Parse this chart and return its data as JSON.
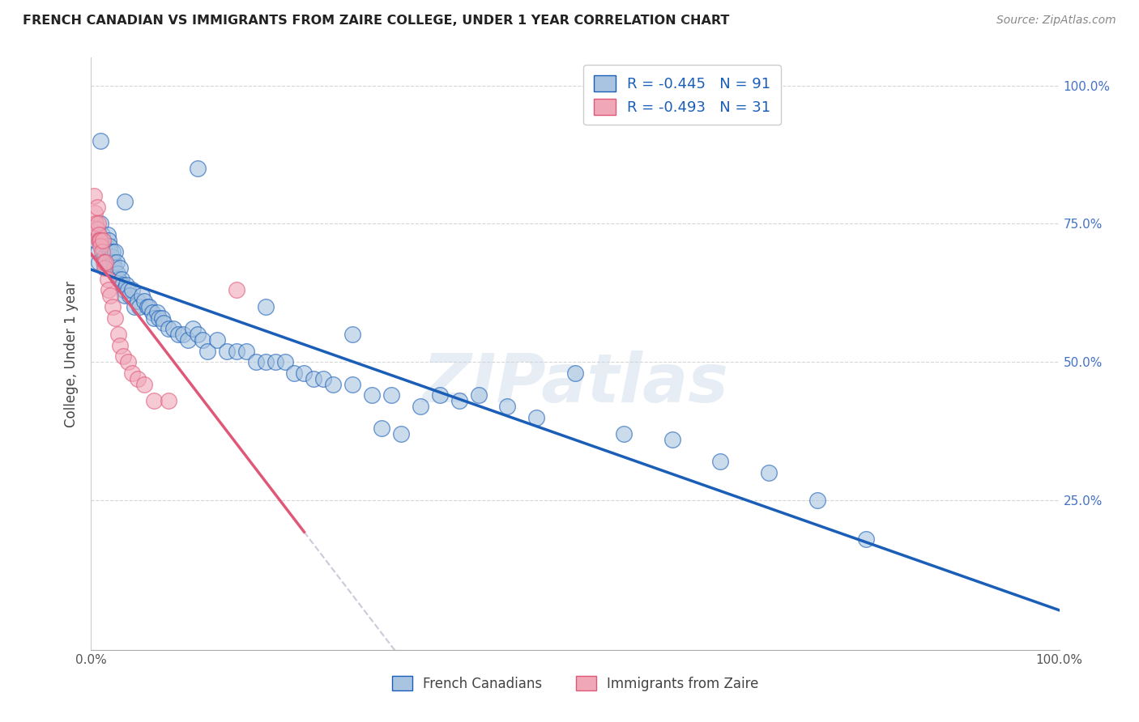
{
  "title": "FRENCH CANADIAN VS IMMIGRANTS FROM ZAIRE COLLEGE, UNDER 1 YEAR CORRELATION CHART",
  "source": "Source: ZipAtlas.com",
  "ylabel": "College, Under 1 year",
  "legend_blue": "R = -0.445   N = 91",
  "legend_pink": "R = -0.493   N = 31",
  "legend_label_blue": "French Canadians",
  "legend_label_pink": "Immigrants from Zaire",
  "watermark": "ZIPatlas",
  "blue_color": "#a8c4e0",
  "pink_color": "#f0a8b8",
  "blue_line_color": "#1a5eb8",
  "pink_line_color": "#e05878",
  "dash_color": "#d0c8d8",
  "blue_points_x": [
    0.005,
    0.007,
    0.008,
    0.01,
    0.01,
    0.011,
    0.012,
    0.013,
    0.014,
    0.015,
    0.015,
    0.016,
    0.017,
    0.018,
    0.019,
    0.02,
    0.02,
    0.021,
    0.022,
    0.023,
    0.024,
    0.025,
    0.026,
    0.027,
    0.028,
    0.03,
    0.031,
    0.032,
    0.034,
    0.035,
    0.036,
    0.038,
    0.04,
    0.042,
    0.045,
    0.048,
    0.05,
    0.052,
    0.055,
    0.058,
    0.06,
    0.063,
    0.065,
    0.068,
    0.07,
    0.073,
    0.075,
    0.08,
    0.085,
    0.09,
    0.095,
    0.1,
    0.105,
    0.11,
    0.115,
    0.12,
    0.13,
    0.14,
    0.15,
    0.16,
    0.17,
    0.18,
    0.19,
    0.2,
    0.21,
    0.22,
    0.23,
    0.24,
    0.25,
    0.27,
    0.29,
    0.31,
    0.34,
    0.36,
    0.38,
    0.4,
    0.43,
    0.46,
    0.5,
    0.55,
    0.6,
    0.65,
    0.7,
    0.75,
    0.8,
    0.3,
    0.32,
    0.27,
    0.18,
    0.035,
    0.11
  ],
  "blue_points_y": [
    0.72,
    0.7,
    0.68,
    0.9,
    0.75,
    0.73,
    0.72,
    0.7,
    0.69,
    0.68,
    0.67,
    0.71,
    0.73,
    0.72,
    0.71,
    0.7,
    0.68,
    0.69,
    0.7,
    0.68,
    0.67,
    0.7,
    0.68,
    0.66,
    0.65,
    0.67,
    0.65,
    0.64,
    0.63,
    0.62,
    0.64,
    0.63,
    0.62,
    0.63,
    0.6,
    0.61,
    0.6,
    0.62,
    0.61,
    0.6,
    0.6,
    0.59,
    0.58,
    0.59,
    0.58,
    0.58,
    0.57,
    0.56,
    0.56,
    0.55,
    0.55,
    0.54,
    0.56,
    0.55,
    0.54,
    0.52,
    0.54,
    0.52,
    0.52,
    0.52,
    0.5,
    0.5,
    0.5,
    0.5,
    0.48,
    0.48,
    0.47,
    0.47,
    0.46,
    0.46,
    0.44,
    0.44,
    0.42,
    0.44,
    0.43,
    0.44,
    0.42,
    0.4,
    0.48,
    0.37,
    0.36,
    0.32,
    0.3,
    0.25,
    0.18,
    0.38,
    0.37,
    0.55,
    0.6,
    0.79,
    0.85
  ],
  "pink_points_x": [
    0.003,
    0.004,
    0.005,
    0.006,
    0.006,
    0.007,
    0.008,
    0.008,
    0.009,
    0.01,
    0.01,
    0.011,
    0.012,
    0.013,
    0.014,
    0.015,
    0.017,
    0.018,
    0.02,
    0.022,
    0.025,
    0.028,
    0.03,
    0.033,
    0.038,
    0.042,
    0.048,
    0.055,
    0.065,
    0.08,
    0.15
  ],
  "pink_points_y": [
    0.8,
    0.77,
    0.75,
    0.78,
    0.74,
    0.75,
    0.73,
    0.72,
    0.72,
    0.72,
    0.71,
    0.7,
    0.72,
    0.68,
    0.67,
    0.68,
    0.65,
    0.63,
    0.62,
    0.6,
    0.58,
    0.55,
    0.53,
    0.51,
    0.5,
    0.48,
    0.47,
    0.46,
    0.43,
    0.43,
    0.63
  ],
  "xlim": [
    0.0,
    1.0
  ],
  "ylim": [
    -0.02,
    1.05
  ],
  "figsize": [
    14.06,
    8.92
  ],
  "dpi": 100
}
